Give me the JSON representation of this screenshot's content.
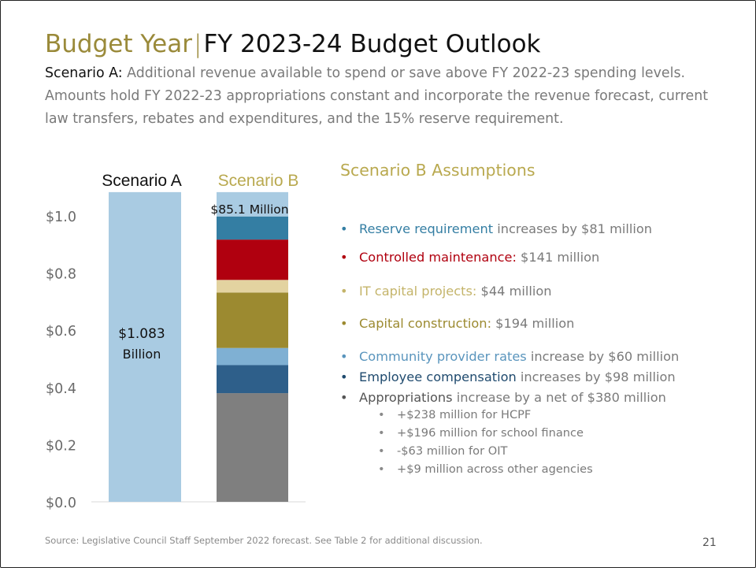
{
  "slide": {
    "title_lead": "Budget Year",
    "title_sep": "|",
    "title_main": "FY 2023-24 Budget Outlook",
    "scenario_label": "Scenario A:",
    "scenario_text": "Additional revenue available to spend or save above FY 2022-23 spending levels. Amounts hold FY 2022-23 appropriations constant and incorporate the revenue forecast, current law transfers, rebates and expenditures, and the 15% reserve requirement.",
    "footer": "Source: Legislative Council Staff September 2022 forecast.  See Table 2 for additional discussion.",
    "page_number": "21"
  },
  "chart_data": {
    "type": "bar",
    "stacked": true,
    "categories": [
      "Scenario A",
      "Scenario B"
    ],
    "ylim": [
      0,
      1.1
    ],
    "yticks": [
      "$0.0",
      "$0.2",
      "$0.4",
      "$0.6",
      "$0.8",
      "$1.0"
    ],
    "ytick_values": [
      0,
      0.2,
      0.4,
      0.6,
      0.8,
      1.0
    ],
    "grid": false,
    "bar_labels": {
      "scenario_a_line1": "$1.083",
      "scenario_a_line2": "Billion",
      "scenario_b": "$85.1 Million"
    },
    "series": [
      {
        "category": "Scenario A",
        "values": [
          1.083,
          0
        ],
        "color": "#a9cbe2"
      },
      {
        "category": "Appropriations",
        "values": [
          0,
          0.38
        ],
        "color": "#7f7f7f"
      },
      {
        "category": "Employee compensation",
        "values": [
          0,
          0.098
        ],
        "color": "#2e5f8a"
      },
      {
        "category": "Community provider rates",
        "values": [
          0,
          0.06
        ],
        "color": "#7fb0d3"
      },
      {
        "category": "Capital construction",
        "values": [
          0,
          0.194
        ],
        "color": "#9c8a30"
      },
      {
        "category": "IT capital projects",
        "values": [
          0,
          0.044
        ],
        "color": "#e3d3a0"
      },
      {
        "category": "Controlled maintenance",
        "values": [
          0,
          0.141
        ],
        "color": "#b0000f"
      },
      {
        "category": "Reserve requirement",
        "values": [
          0,
          0.081
        ],
        "color": "#347ea3"
      },
      {
        "category": "Remaining",
        "values": [
          0,
          0.085
        ],
        "color": "#a9cbe2"
      }
    ]
  },
  "assumptions": {
    "title": "Scenario B Assumptions",
    "items": [
      {
        "bullet": "•",
        "label": "Reserve requirement",
        "rest": " increases by $81 million",
        "color": "#347ea3"
      },
      {
        "bullet": "•",
        "label": "Controlled maintenance:",
        "rest": " $141 million",
        "color": "#b0000f"
      },
      {
        "bullet": "•",
        "label": "IT capital projects:",
        "rest": " $44 million",
        "color": "#c4b46a"
      },
      {
        "bullet": "•",
        "label": "Capital construction:",
        "rest": " $194 million",
        "color": "#9c8a30"
      },
      {
        "bullet": "•",
        "label": "Community provider rates",
        "rest": " increase by $60 million",
        "color": "#5a95bd"
      },
      {
        "bullet": "•",
        "label": "Employee compensation",
        "rest": " increases by $98 million",
        "color": "#1f4a6e"
      },
      {
        "bullet": "•",
        "label": "Appropriations",
        "rest": " increase by a net of $380 million",
        "color": "#555555"
      }
    ],
    "subitems": [
      {
        "bullet": "•",
        "text": "+$238 million for HCPF"
      },
      {
        "bullet": "•",
        "text": "+$196 million for school finance"
      },
      {
        "bullet": "•",
        "text": "-$63 million for OIT"
      },
      {
        "bullet": "•",
        "text": "+$9 million across other agencies"
      }
    ]
  }
}
